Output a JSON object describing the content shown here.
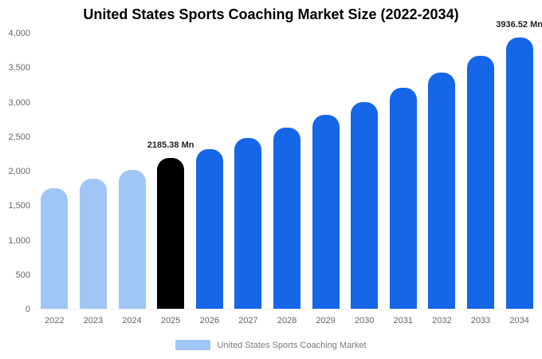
{
  "title": "United States Sports Coaching Market Size (2022-2034)",
  "legend": {
    "label": "United States Sports Coaching Market",
    "swatch_color": "#a0c6f6"
  },
  "chart_data": {
    "type": "bar",
    "title": "United States Sports Coaching Market Size (2022-2034)",
    "xlabel": "",
    "ylabel": "",
    "categories": [
      "2022",
      "2023",
      "2024",
      "2025",
      "2026",
      "2027",
      "2028",
      "2029",
      "2030",
      "2031",
      "2032",
      "2033",
      "2034"
    ],
    "values": [
      1750,
      1880,
      2010,
      2185.38,
      2310,
      2470,
      2630,
      2810,
      3000,
      3200,
      3420,
      3660,
      3936.52
    ],
    "unit": "Mn",
    "ylim": [
      0,
      4000
    ],
    "ytick_labels": [
      "0",
      "500",
      "1,000",
      "1,500",
      "2,000",
      "2,500",
      "3,000",
      "3,500",
      "4,000"
    ],
    "grid": false,
    "legend_position": "bottom",
    "colors": {
      "historical_light_blue": "#a0c6f6",
      "base_year_black": "#000000",
      "forecast_blue": "#1666e8"
    },
    "bar_colors": [
      "#a0c6f6",
      "#a0c6f6",
      "#a0c6f6",
      "#000000",
      "#1666e8",
      "#1666e8",
      "#1666e8",
      "#1666e8",
      "#1666e8",
      "#1666e8",
      "#1666e8",
      "#1666e8",
      "#1666e8"
    ],
    "annotations": [
      {
        "category": "2025",
        "index": 3,
        "text": "2185.38 Mn"
      },
      {
        "category": "2034",
        "index": 12,
        "text": "3936.52 Mn"
      }
    ],
    "legend_entries": [
      "United States Sports Coaching Market"
    ]
  }
}
